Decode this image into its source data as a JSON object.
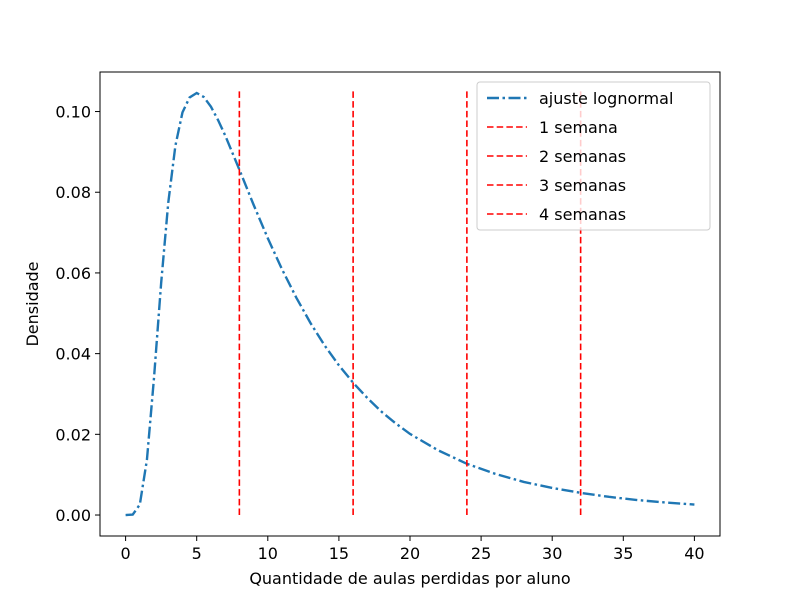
{
  "chart_data": {
    "type": "line",
    "title": "",
    "xlabel": "Quantidade de aulas perdidas por aluno",
    "ylabel": "Densidade",
    "xlim": [
      -1.8,
      41.8
    ],
    "ylim": [
      -0.0052,
      0.1098
    ],
    "x_ticks": [
      0,
      5,
      10,
      15,
      20,
      25,
      30,
      35,
      40
    ],
    "x_tick_labels": [
      "0",
      "5",
      "10",
      "15",
      "20",
      "25",
      "30",
      "35",
      "40"
    ],
    "y_ticks": [
      0.0,
      0.02,
      0.04,
      0.06,
      0.08,
      0.1
    ],
    "y_tick_labels": [
      "0.00",
      "0.02",
      "0.04",
      "0.06",
      "0.08",
      "0.10"
    ],
    "grid": false,
    "legend_position": "top-right",
    "series": [
      {
        "name": "ajuste lognormal",
        "color": "#1f77b4",
        "style": "dashdot",
        "x": [
          0,
          0.5,
          1,
          1.5,
          2,
          2.5,
          3,
          3.5,
          4,
          4.5,
          5,
          5.5,
          6,
          6.5,
          7,
          8,
          9,
          10,
          11,
          12,
          13,
          14,
          15,
          16,
          17,
          18,
          19,
          20,
          22,
          24,
          26,
          28,
          30,
          32,
          34,
          36,
          38,
          40
        ],
        "values": [
          0.0,
          0.0001,
          0.0026,
          0.0137,
          0.0341,
          0.0575,
          0.0774,
          0.0915,
          0.0998,
          0.1035,
          0.1046,
          0.1036,
          0.1012,
          0.0979,
          0.0941,
          0.0856,
          0.0769,
          0.0686,
          0.0609,
          0.0539,
          0.0476,
          0.042,
          0.0371,
          0.0328,
          0.029,
          0.0256,
          0.0227,
          0.0201,
          0.016,
          0.0127,
          0.0102,
          0.0082,
          0.0067,
          0.0055,
          0.0045,
          0.0037,
          0.0031,
          0.0026
        ]
      },
      {
        "name": "1 semana",
        "color": "#ff0000",
        "style": "dashed",
        "x_value": 8,
        "y_range": [
          0,
          0.105
        ]
      },
      {
        "name": "2 semanas",
        "color": "#ff0000",
        "style": "dashed",
        "x_value": 16,
        "y_range": [
          0,
          0.105
        ]
      },
      {
        "name": "3 semanas",
        "color": "#ff0000",
        "style": "dashed",
        "x_value": 24,
        "y_range": [
          0,
          0.105
        ]
      },
      {
        "name": "4 semanas",
        "color": "#ff0000",
        "style": "dashed",
        "x_value": 32,
        "y_range": [
          0,
          0.105
        ]
      }
    ]
  }
}
